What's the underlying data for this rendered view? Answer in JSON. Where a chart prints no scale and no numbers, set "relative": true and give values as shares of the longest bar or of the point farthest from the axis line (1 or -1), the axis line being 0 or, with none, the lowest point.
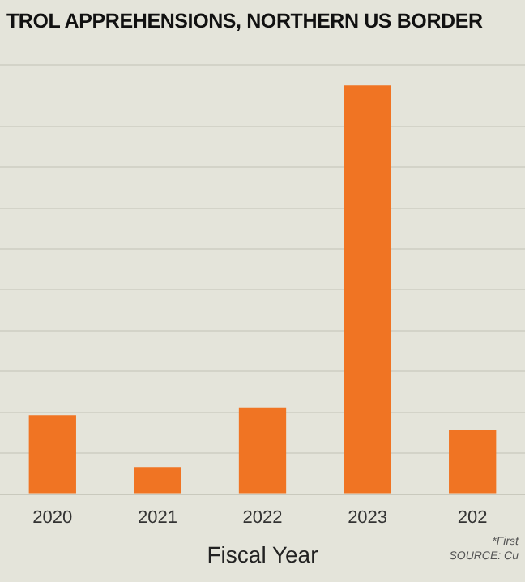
{
  "chart_data": {
    "type": "bar",
    "title": "TROL APPREHENSIONS, NORTHERN US BORDER",
    "xlabel": "Fiscal Year",
    "categories": [
      "2020",
      "2021",
      "2022",
      "2023",
      "202"
    ],
    "values": [
      0.193,
      0.066,
      0.212,
      1,
      0.158
    ],
    "color": "#f07423",
    "relative": true,
    "grid": "y",
    "legend": false,
    "annotations": [
      "*First",
      "SOURCE: Cu"
    ]
  }
}
